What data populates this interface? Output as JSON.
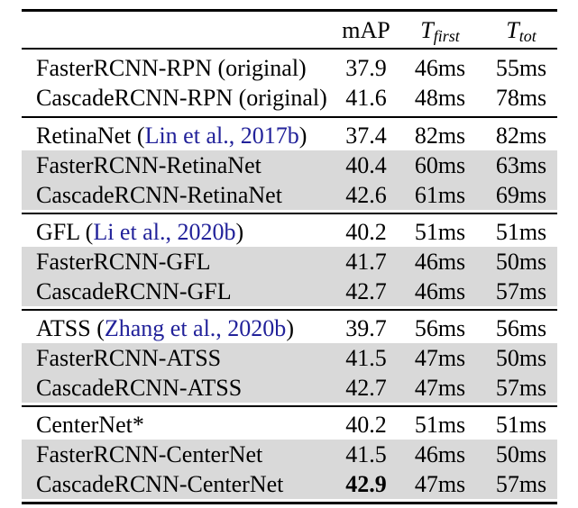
{
  "colors": {
    "citation": "#22229a",
    "row_shade": "#d9d9d9",
    "rule": "#000000",
    "text": "#000000",
    "background": "#ffffff"
  },
  "header": {
    "method_label": "",
    "map_label": "mAP",
    "t_first": {
      "base": "T",
      "sub": "first"
    },
    "t_tot": {
      "base": "T",
      "sub": "tot"
    }
  },
  "blocks": [
    {
      "rows": [
        {
          "label": "FasterRCNN-RPN (original)",
          "citation": "",
          "suffix": "",
          "map": "37.9",
          "t_first": "46ms",
          "t_tot": "55ms",
          "shaded": false,
          "map_bold": false
        },
        {
          "label": "CascadeRCNN-RPN (original)",
          "citation": "",
          "suffix": "",
          "map": "41.6",
          "t_first": "48ms",
          "t_tot": "78ms",
          "shaded": false,
          "map_bold": false
        }
      ]
    },
    {
      "rows": [
        {
          "label": "RetinaNet (",
          "citation": "Lin et al., 2017b",
          "suffix": ")",
          "map": "37.4",
          "t_first": "82ms",
          "t_tot": "82ms",
          "shaded": false,
          "map_bold": false
        },
        {
          "label": "FasterRCNN-RetinaNet",
          "citation": "",
          "suffix": "",
          "map": "40.4",
          "t_first": "60ms",
          "t_tot": "63ms",
          "shaded": true,
          "map_bold": false
        },
        {
          "label": "CascadeRCNN-RetinaNet",
          "citation": "",
          "suffix": "",
          "map": "42.6",
          "t_first": "61ms",
          "t_tot": "69ms",
          "shaded": true,
          "map_bold": false
        }
      ]
    },
    {
      "rows": [
        {
          "label": "GFL (",
          "citation": "Li et al., 2020b",
          "suffix": ")",
          "map": "40.2",
          "t_first": "51ms",
          "t_tot": "51ms",
          "shaded": false,
          "map_bold": false
        },
        {
          "label": "FasterRCNN-GFL",
          "citation": "",
          "suffix": "",
          "map": "41.7",
          "t_first": "46ms",
          "t_tot": "50ms",
          "shaded": true,
          "map_bold": false
        },
        {
          "label": "CascadeRCNN-GFL",
          "citation": "",
          "suffix": "",
          "map": "42.7",
          "t_first": "46ms",
          "t_tot": "57ms",
          "shaded": true,
          "map_bold": false
        }
      ]
    },
    {
      "rows": [
        {
          "label": "ATSS (",
          "citation": "Zhang et al., 2020b",
          "suffix": ")",
          "map": "39.7",
          "t_first": "56ms",
          "t_tot": "56ms",
          "shaded": false,
          "map_bold": false
        },
        {
          "label": "FasterRCNN-ATSS",
          "citation": "",
          "suffix": "",
          "map": "41.5",
          "t_first": "47ms",
          "t_tot": "50ms",
          "shaded": true,
          "map_bold": false
        },
        {
          "label": "CascadeRCNN-ATSS",
          "citation": "",
          "suffix": "",
          "map": "42.7",
          "t_first": "47ms",
          "t_tot": "57ms",
          "shaded": true,
          "map_bold": false
        }
      ]
    },
    {
      "rows": [
        {
          "label": "CenterNet*",
          "citation": "",
          "suffix": "",
          "map": "40.2",
          "t_first": "51ms",
          "t_tot": "51ms",
          "shaded": false,
          "map_bold": false
        },
        {
          "label": "FasterRCNN-CenterNet",
          "citation": "",
          "suffix": "",
          "map": "41.5",
          "t_first": "46ms",
          "t_tot": "50ms",
          "shaded": true,
          "map_bold": false
        },
        {
          "label": "CascadeRCNN-CenterNet",
          "citation": "",
          "suffix": "",
          "map": "42.9",
          "t_first": "47ms",
          "t_tot": "57ms",
          "shaded": true,
          "map_bold": true
        }
      ]
    }
  ]
}
